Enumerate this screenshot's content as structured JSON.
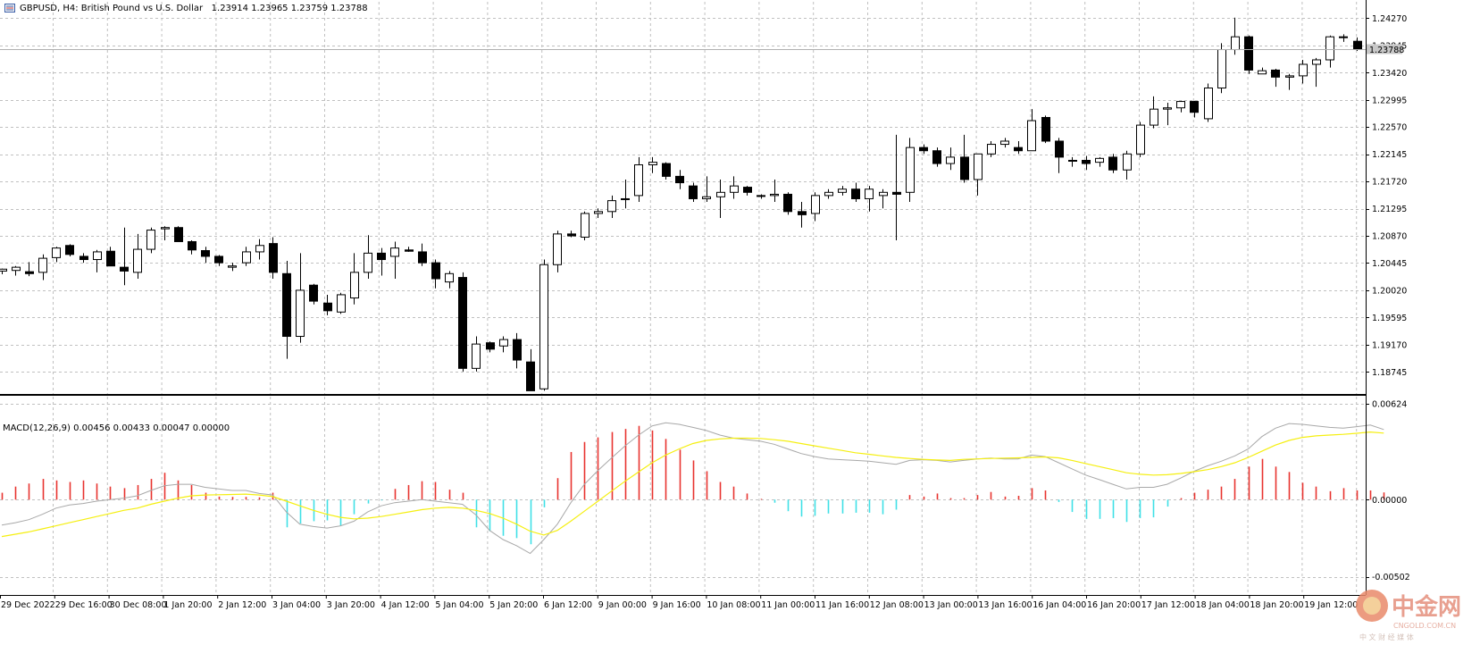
{
  "header": {
    "symbol_info": "GBPUSD, H4:  British Pound vs U.S. Dollar",
    "ohlc": "1.23914 1.23965 1.23759 1.23788"
  },
  "current_price_label": "1.23788",
  "price_axis": [
    "1.24270",
    "1.23845",
    "1.23420",
    "1.22995",
    "1.22570",
    "1.22145",
    "1.21720",
    "1.21295",
    "1.20870",
    "1.20445",
    "1.20020",
    "1.19595",
    "1.19170",
    "1.18745"
  ],
  "macd": {
    "title": "MACD(12,26,9) 0.00456 0.00433 0.00047 0.00000",
    "axis_labels": [
      "0.00624",
      "0.00000",
      "-0.00502"
    ]
  },
  "time_axis": [
    "29 Dec 2022",
    "29 Dec 16:00",
    "30 Dec 08:00",
    "1 Jan 20:00",
    "2 Jan 12:00",
    "3 Jan 04:00",
    "3 Jan 20:00",
    "4 Jan 12:00",
    "5 Jan 04:00",
    "5 Jan 20:00",
    "6 Jan 12:00",
    "9 Jan 00:00",
    "9 Jan 16:00",
    "10 Jan 08:00",
    "11 Jan 00:00",
    "11 Jan 16:00",
    "12 Jan 08:00",
    "13 Jan 00:00",
    "13 Jan 16:00",
    "16 Jan 04:00",
    "16 Jan 20:00",
    "17 Jan 12:00",
    "18 Jan 04:00",
    "18 Jan 20:00",
    "19 Jan 12:00"
  ],
  "watermark": {
    "name": "中金网",
    "domain": "CNGOLD.COM.CN",
    "slogan": "中 文 财 经 媒 体"
  },
  "colors": {
    "bull_body": "#ffffff",
    "bear_body": "#000000",
    "hist_pos": "#e8332f",
    "hist_neg": "#3fe0e6",
    "signal_line": "#f5ef10",
    "macd_line": "#a8a8a8",
    "grid": "#c0c0c0"
  },
  "chart_data": {
    "type": "candlestick",
    "timeframe": "H4",
    "candles": [
      [
        1.2032,
        1.2036,
        1.2027,
        1.2035
      ],
      [
        1.2033,
        1.204,
        1.2025,
        1.2038
      ],
      [
        1.2031,
        1.2046,
        1.2024,
        1.2028
      ],
      [
        1.203,
        1.2058,
        1.2018,
        1.2052
      ],
      [
        1.2053,
        1.207,
        1.2046,
        1.2068
      ],
      [
        1.2072,
        1.2074,
        1.2055,
        1.2058
      ],
      [
        1.2055,
        1.206,
        1.2045,
        1.205
      ],
      [
        1.205,
        1.2065,
        1.203,
        1.2062
      ],
      [
        1.2063,
        1.207,
        1.2045,
        1.204
      ],
      [
        1.2038,
        1.21,
        1.201,
        1.2032
      ],
      [
        1.203,
        1.209,
        1.202,
        1.2066
      ],
      [
        1.2066,
        1.21,
        1.206,
        1.2096
      ],
      [
        1.2098,
        1.2102,
        1.208,
        1.21
      ],
      [
        1.21,
        1.2102,
        1.2082,
        1.2078
      ],
      [
        1.2078,
        1.208,
        1.2058,
        1.2065
      ],
      [
        1.2064,
        1.207,
        1.2045,
        1.2055
      ],
      [
        1.2055,
        1.2057,
        1.204,
        1.2045
      ],
      [
        1.2038,
        1.2045,
        1.2032,
        1.204
      ],
      [
        1.2045,
        1.207,
        1.204,
        1.2062
      ],
      [
        1.2062,
        1.2082,
        1.205,
        1.2072
      ],
      [
        1.2075,
        1.2085,
        1.202,
        1.203
      ],
      [
        1.2028,
        1.2048,
        1.1895,
        1.193
      ],
      [
        1.193,
        1.206,
        1.192,
        1.2002
      ],
      [
        1.201,
        1.2012,
        1.198,
        1.1985
      ],
      [
        1.1982,
        1.1995,
        1.1963,
        1.197
      ],
      [
        1.1968,
        1.1998,
        1.1965,
        1.1995
      ],
      [
        1.199,
        1.206,
        1.198,
        1.203
      ],
      [
        1.203,
        1.2088,
        1.202,
        1.206
      ],
      [
        1.206,
        1.2068,
        1.2025,
        1.205
      ],
      [
        1.2055,
        1.2078,
        1.202,
        1.2068
      ],
      [
        1.2065,
        1.207,
        1.2062,
        1.2063
      ],
      [
        1.2062,
        1.2075,
        1.204,
        1.2045
      ],
      [
        1.2045,
        1.205,
        1.2005,
        1.202
      ],
      [
        1.2015,
        1.2032,
        1.2005,
        1.2028
      ],
      [
        1.2022,
        1.203,
        1.1875,
        1.188
      ],
      [
        1.188,
        1.193,
        1.1875,
        1.1918
      ],
      [
        1.192,
        1.1922,
        1.1905,
        1.191
      ],
      [
        1.1915,
        1.193,
        1.1905,
        1.1925
      ],
      [
        1.1925,
        1.1935,
        1.188,
        1.1893
      ],
      [
        1.189,
        1.191,
        1.1845,
        1.1845
      ],
      [
        1.1848,
        1.205,
        1.1845,
        1.2042
      ],
      [
        1.2042,
        1.2095,
        1.203,
        1.209
      ],
      [
        1.209,
        1.2095,
        1.2085,
        1.2087
      ],
      [
        1.2085,
        1.2125,
        1.208,
        1.2122
      ],
      [
        1.2122,
        1.213,
        1.2115,
        1.2125
      ],
      [
        1.2125,
        1.215,
        1.2115,
        1.2142
      ],
      [
        1.2145,
        1.2175,
        1.213,
        1.2145
      ],
      [
        1.215,
        1.221,
        1.214,
        1.2198
      ],
      [
        1.2198,
        1.221,
        1.2185,
        1.2202
      ],
      [
        1.22,
        1.2202,
        1.2175,
        1.218
      ],
      [
        1.218,
        1.219,
        1.216,
        1.217
      ],
      [
        1.2165,
        1.217,
        1.214,
        1.2145
      ],
      [
        1.2145,
        1.218,
        1.214,
        1.2148
      ],
      [
        1.2148,
        1.2175,
        1.2115,
        1.2155
      ],
      [
        1.2155,
        1.218,
        1.2145,
        1.2165
      ],
      [
        1.2163,
        1.2165,
        1.215,
        1.2155
      ],
      [
        1.215,
        1.2152,
        1.2145,
        1.215
      ],
      [
        1.215,
        1.2175,
        1.214,
        1.2152
      ],
      [
        1.2152,
        1.2155,
        1.212,
        1.2125
      ],
      [
        1.2125,
        1.214,
        1.21,
        1.212
      ],
      [
        1.2122,
        1.2155,
        1.211,
        1.215
      ],
      [
        1.215,
        1.216,
        1.2145,
        1.2155
      ],
      [
        1.2155,
        1.2165,
        1.215,
        1.216
      ],
      [
        1.216,
        1.217,
        1.214,
        1.2145
      ],
      [
        1.2145,
        1.2165,
        1.2125,
        1.216
      ],
      [
        1.215,
        1.216,
        1.213,
        1.2155
      ],
      [
        1.2155,
        1.2245,
        1.208,
        1.2152
      ],
      [
        1.2155,
        1.224,
        1.214,
        1.2225
      ],
      [
        1.2225,
        1.223,
        1.2215,
        1.222
      ],
      [
        1.222,
        1.2225,
        1.2195,
        1.22
      ],
      [
        1.22,
        1.2225,
        1.219,
        1.221
      ],
      [
        1.221,
        1.2245,
        1.217,
        1.2175
      ],
      [
        1.2175,
        1.2215,
        1.215,
        1.2215
      ],
      [
        1.2215,
        1.2235,
        1.221,
        1.223
      ],
      [
        1.223,
        1.224,
        1.2225,
        1.2235
      ],
      [
        1.2225,
        1.2235,
        1.2215,
        1.222
      ],
      [
        1.222,
        1.2285,
        1.222,
        1.2267
      ],
      [
        1.2272,
        1.2275,
        1.2232,
        1.2235
      ],
      [
        1.2235,
        1.224,
        1.2185,
        1.221
      ],
      [
        1.2205,
        1.221,
        1.2195,
        1.2205
      ],
      [
        1.2205,
        1.2212,
        1.219,
        1.22
      ],
      [
        1.2202,
        1.221,
        1.2195,
        1.2208
      ],
      [
        1.221,
        1.2215,
        1.2185,
        1.219
      ],
      [
        1.219,
        1.222,
        1.2175,
        1.2215
      ],
      [
        1.2215,
        1.2265,
        1.221,
        1.226
      ],
      [
        1.226,
        1.2305,
        1.2255,
        1.2285
      ],
      [
        1.2285,
        1.2295,
        1.226,
        1.2287
      ],
      [
        1.2287,
        1.2298,
        1.228,
        1.2297
      ],
      [
        1.2297,
        1.2298,
        1.2272,
        1.228
      ],
      [
        1.227,
        1.2325,
        1.2265,
        1.2318
      ],
      [
        1.2318,
        1.2388,
        1.231,
        1.2378
      ],
      [
        1.2378,
        1.2428,
        1.237,
        1.2398
      ],
      [
        1.2398,
        1.24,
        1.234,
        1.2346
      ],
      [
        1.234,
        1.235,
        1.234,
        1.2345
      ],
      [
        1.2346,
        1.2348,
        1.232,
        1.2335
      ],
      [
        1.2335,
        1.234,
        1.2315,
        1.2337
      ],
      [
        1.2337,
        1.2362,
        1.2325,
        1.2355
      ],
      [
        1.2355,
        1.2365,
        1.232,
        1.2362
      ],
      [
        1.2362,
        1.24,
        1.235,
        1.2398
      ],
      [
        1.2398,
        1.2402,
        1.239,
        1.2397
      ],
      [
        1.2391,
        1.2397,
        1.2376,
        1.2379
      ]
    ],
    "macd_histogram": [
      0.00045,
      0.00085,
      0.00105,
      0.00135,
      0.00125,
      0.00115,
      0.00125,
      0.00105,
      0.00085,
      0.00075,
      0.00095,
      0.00135,
      0.00175,
      0.00125,
      0.00095,
      0.00045,
      0.0002,
      0.00018,
      0.00018,
      0.00015,
      0.00045,
      -0.0018,
      -0.00155,
      -0.0014,
      -0.00135,
      -0.0017,
      -0.00095,
      -0.00025,
      -5e-05,
      0.0007,
      0.00095,
      0.0012,
      0.00115,
      0.00065,
      0.00045,
      -0.0018,
      -0.00205,
      -0.00235,
      -0.0025,
      -0.0029,
      -0.0005,
      0.0014,
      0.0031,
      0.00375,
      0.00405,
      0.0044,
      0.0046,
      0.0048,
      0.0045,
      0.00395,
      0.00325,
      0.00255,
      0.00185,
      0.00115,
      0.00085,
      0.0004,
      5e-05,
      -0.0002,
      -0.00075,
      -0.0011,
      -0.00105,
      -0.0009,
      -0.0009,
      -0.00085,
      -0.00085,
      -0.00095,
      -0.00065,
      0.0003,
      0.0002,
      0.0004,
      0.0001,
      0.0001,
      0.0003,
      0.0005,
      0.0002,
      0.00025,
      0.00075,
      0.0006,
      -0.00015,
      -0.0008,
      -0.00125,
      -0.00125,
      -0.0012,
      -0.00145,
      -0.0012,
      -0.00115,
      -0.00045,
      0.0001,
      0.00045,
      0.00065,
      0.00085,
      0.00135,
      0.00215,
      0.00265,
      0.00215,
      0.0018,
      0.0011,
      0.00085,
      0.00055,
      0.00075,
      0.0006,
      0.0006,
      0.00047
    ],
    "macd_line": [
      -0.00165,
      -0.0015,
      -0.0013,
      -0.00095,
      -0.00055,
      -0.00035,
      -0.00025,
      -0.0001,
      0.0,
      0.0001,
      0.00025,
      0.0006,
      0.0009,
      0.001,
      0.001,
      0.0008,
      0.0007,
      0.0006,
      0.0006,
      0.0004,
      0.0003,
      -0.0008,
      -0.0016,
      -0.00175,
      -0.00185,
      -0.0017,
      -0.0014,
      -0.0008,
      -0.0004,
      -0.0002,
      -0.0001,
      0.0,
      -0.0001,
      -0.0002,
      -0.0003,
      -0.001,
      -0.002,
      -0.0026,
      -0.003,
      -0.0035,
      -0.0026,
      -0.0016,
      -0.0002,
      0.001,
      0.0019,
      0.0027,
      0.0035,
      0.0042,
      0.0048,
      0.005,
      0.0049,
      0.0047,
      0.0045,
      0.0042,
      0.004,
      0.0039,
      0.0038,
      0.0036,
      0.0033,
      0.003,
      0.0028,
      0.00265,
      0.0026,
      0.00255,
      0.0025,
      0.0024,
      0.0023,
      0.00255,
      0.0026,
      0.00255,
      0.00245,
      0.00255,
      0.00265,
      0.0027,
      0.00265,
      0.00265,
      0.0029,
      0.0028,
      0.0024,
      0.002,
      0.0016,
      0.0013,
      0.001,
      0.0007,
      0.0008,
      0.0008,
      0.001,
      0.0014,
      0.00185,
      0.0022,
      0.0025,
      0.00285,
      0.0033,
      0.0041,
      0.00465,
      0.00495,
      0.0049,
      0.0048,
      0.0047,
      0.00465,
      0.00475,
      0.00485,
      0.00456
    ],
    "signal_line": [
      -0.0024,
      -0.00225,
      -0.0021,
      -0.0019,
      -0.0017,
      -0.0015,
      -0.0013,
      -0.0011,
      -0.0009,
      -0.0007,
      -0.00055,
      -0.0003,
      -0.0001,
      0.0001,
      0.00025,
      0.0003,
      0.00032,
      0.00034,
      0.00036,
      0.0003,
      0.0002,
      -0.0001,
      -0.0004,
      -0.0007,
      -0.00095,
      -0.00115,
      -0.00125,
      -0.0012,
      -0.0011,
      -0.00095,
      -0.0008,
      -0.00065,
      -0.00055,
      -0.0005,
      -0.00055,
      -0.0007,
      -0.0009,
      -0.0012,
      -0.0016,
      -0.00205,
      -0.0023,
      -0.002,
      -0.0014,
      -0.00075,
      -0.0001,
      0.00055,
      0.0012,
      0.0018,
      0.0024,
      0.0029,
      0.0033,
      0.00365,
      0.00385,
      0.00395,
      0.004,
      0.004,
      0.00398,
      0.0039,
      0.0038,
      0.00365,
      0.0035,
      0.00335,
      0.0032,
      0.00305,
      0.00295,
      0.00285,
      0.00275,
      0.00268,
      0.00262,
      0.00258,
      0.00255,
      0.00262,
      0.00265,
      0.00268,
      0.0027,
      0.00272,
      0.00275,
      0.00278,
      0.00272,
      0.00255,
      0.00235,
      0.00215,
      0.00195,
      0.00175,
      0.00165,
      0.0016,
      0.00162,
      0.0017,
      0.00182,
      0.00195,
      0.00215,
      0.0024,
      0.00275,
      0.00315,
      0.00355,
      0.00385,
      0.00405,
      0.00415,
      0.0042,
      0.00425,
      0.00432,
      0.0044,
      0.00433
    ],
    "main_axis": {
      "ylim": [
        1.184,
        1.24527
      ]
    },
    "macd_axis": {
      "ylim": [
        -0.0062,
        0.0067
      ]
    },
    "grid": true
  }
}
